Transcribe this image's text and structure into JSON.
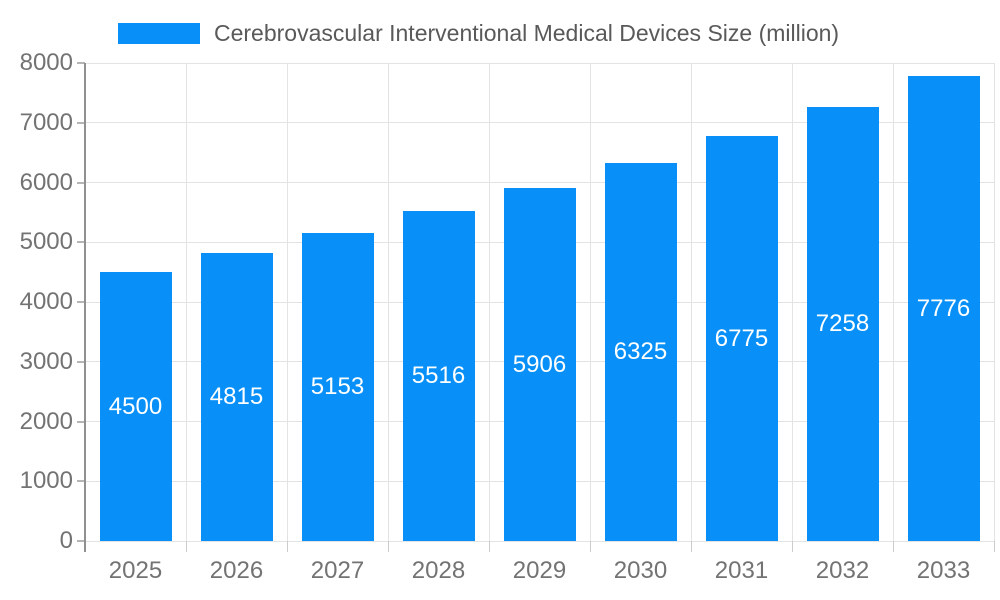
{
  "legend": {
    "label": "Cerebrovascular Interventional Medical Devices Size (million)"
  },
  "colors": {
    "bar": "#0890f8",
    "grid": "#e3e3e3",
    "axis": "#909090",
    "y_tick": "#b5b5b5",
    "x_tick": "#cccccc",
    "tick_text": "#737373",
    "legend_text": "#595959",
    "value_label_text": "#ffffff"
  },
  "chart_data": {
    "type": "bar",
    "title": "Cerebrovascular Interventional Medical Devices Size (million)",
    "categories": [
      "2025",
      "2026",
      "2027",
      "2028",
      "2029",
      "2030",
      "2031",
      "2032",
      "2033"
    ],
    "values": [
      4500,
      4815,
      5153,
      5516,
      5906,
      6325,
      6775,
      7258,
      7776
    ],
    "series": [
      {
        "name": "Cerebrovascular Interventional Medical Devices Size (million)",
        "values": [
          4500,
          4815,
          5153,
          5516,
          5906,
          6325,
          6775,
          7258,
          7776
        ]
      }
    ],
    "xlabel": "",
    "ylabel": "",
    "ylim": [
      0,
      8000
    ],
    "ytick_step": 1000,
    "yticks": [
      0,
      1000,
      2000,
      3000,
      4000,
      5000,
      6000,
      7000,
      8000
    ],
    "grid": true,
    "legend_position": "top",
    "value_labels": "centered-inside-bars"
  }
}
